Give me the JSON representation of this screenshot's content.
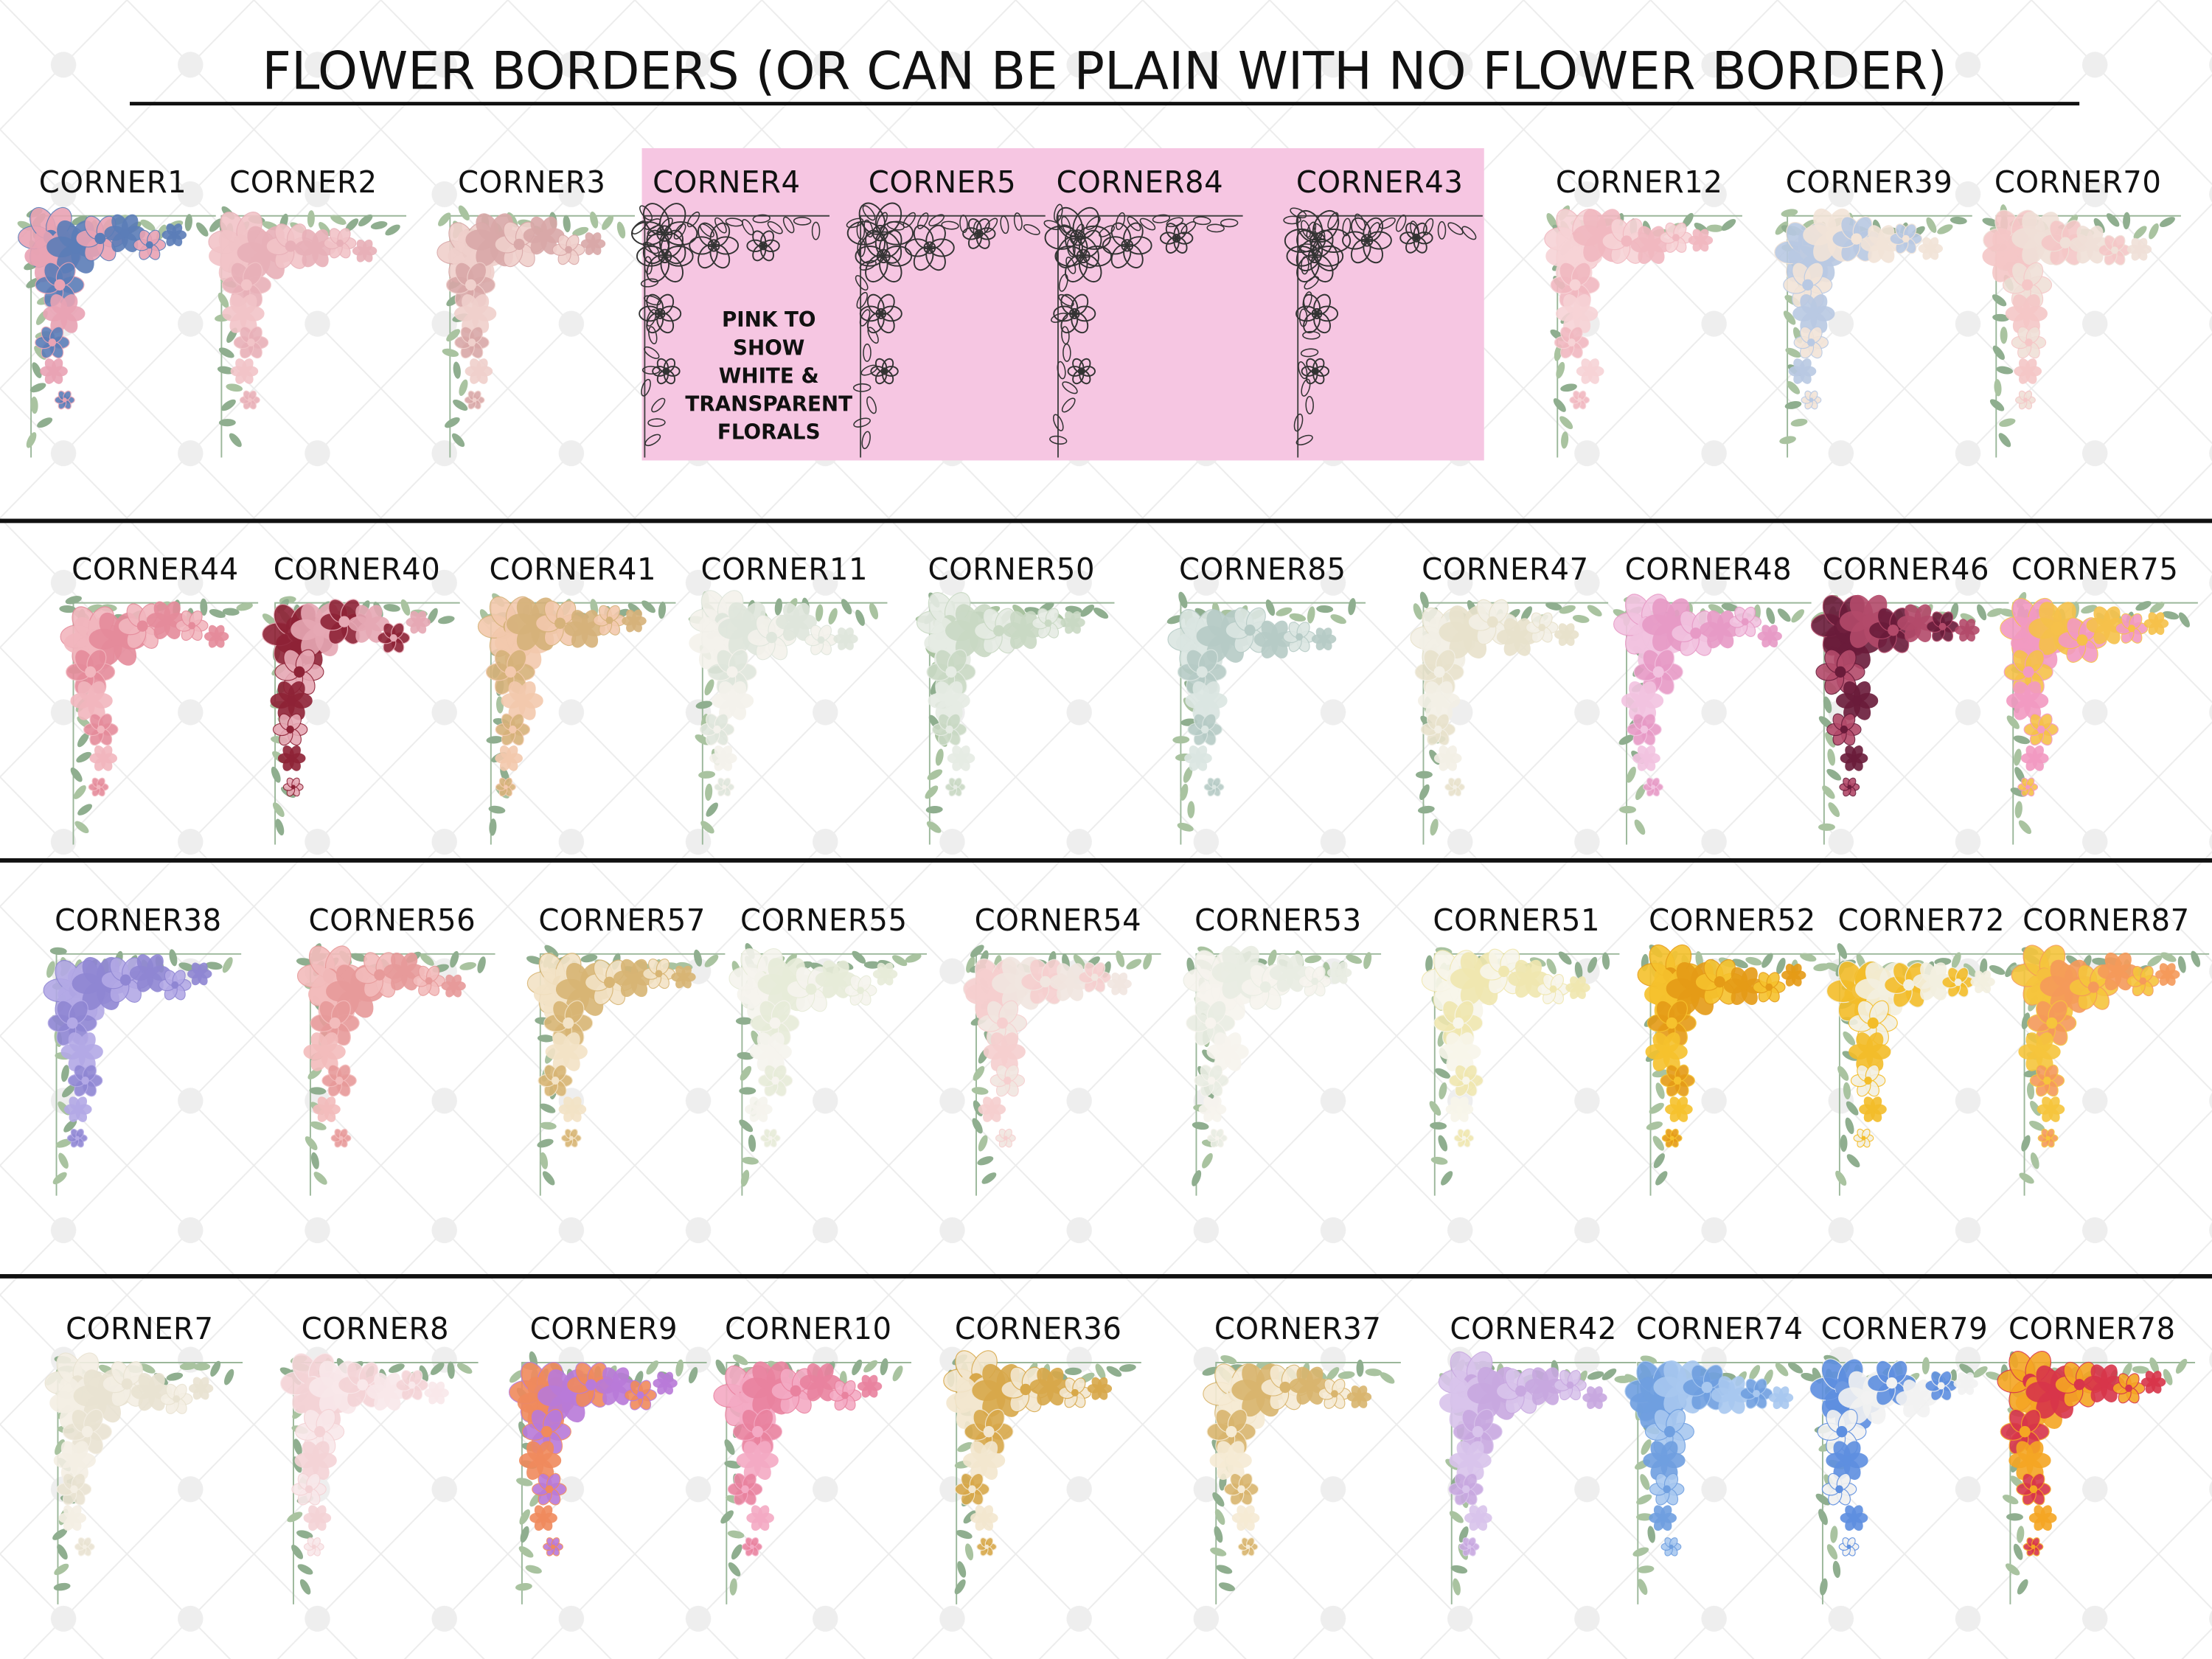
{
  "title": "FLOWER BORDERS (OR CAN BE PLAIN WITH NO FLOWER BORDER)",
  "rows": [
    [
      "CORNER1",
      "CORNER2",
      "CORNER3",
      "CORNER4",
      "CORNER5",
      "CORNER84",
      "CORNER43",
      "CORNER12",
      "CORNER39",
      "CORNER70"
    ],
    [
      "CORNER44",
      "CORNER40",
      "CORNER41",
      "CORNER11",
      "CORNER50",
      "CORNER85",
      "CORNER47",
      "CORNER48",
      "CORNER46",
      "CORNER75"
    ],
    [
      "CORNER38",
      "CORNER56",
      "CORNER57",
      "CORNER55",
      "CORNER54",
      "CORNER53",
      "CORNER51",
      "CORNER52",
      "CORNER72",
      "CORNER87"
    ],
    [
      "CORNER7",
      "CORNER8",
      "CORNER9",
      "CORNER10",
      "CORNER36",
      "CORNER37",
      "CORNER42",
      "CORNER74",
      "CORNER79",
      "CORNER78"
    ]
  ],
  "note": [
    "PINK TO",
    "SHOW",
    "WHITE &",
    "TRANSPARENT",
    "FLORALS"
  ]
}
